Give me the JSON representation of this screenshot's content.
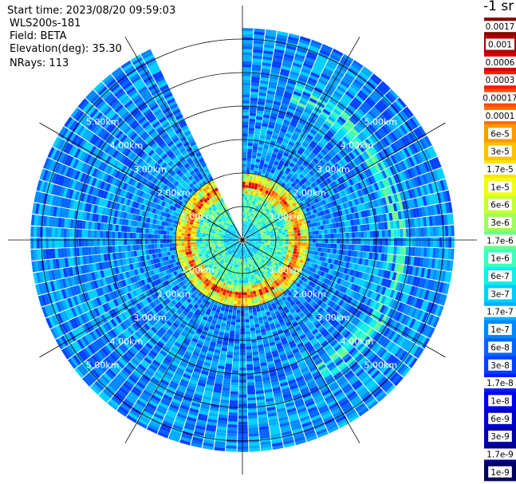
{
  "header": {
    "start_time": "Start time: 2023/08/20 09:59:03",
    "instrument": "WLS200s-181",
    "field": "Field: BETA",
    "elevation": "Elevation(deg): 35.30",
    "nrays": "NRays: 113"
  },
  "colorbar": {
    "unit_label": "-1 sr",
    "entries": [
      {
        "label": "0.0017",
        "color": "#8b0000"
      },
      {
        "label": "0.001",
        "color": "#b00000"
      },
      {
        "label": "0.0006",
        "color": "#d80000"
      },
      {
        "label": "0.0003",
        "color": "#ff1a00"
      },
      {
        "label": "0.00017",
        "color": "#ff4a00"
      },
      {
        "label": "0.0001",
        "color": "#ff7000"
      },
      {
        "label": "6e-5",
        "color": "#ff9a00"
      },
      {
        "label": "3e-5",
        "color": "#ffc000"
      },
      {
        "label": "1.7e-5",
        "color": "#ffe400"
      },
      {
        "label": "1e-5",
        "color": "#f0ff10"
      },
      {
        "label": "6e-6",
        "color": "#c8ff30"
      },
      {
        "label": "3e-6",
        "color": "#9cff5c"
      },
      {
        "label": "1.7e-6",
        "color": "#6cff8c"
      },
      {
        "label": "1e-6",
        "color": "#3cffbc"
      },
      {
        "label": "6e-7",
        "color": "#10f0e8"
      },
      {
        "label": "3e-7",
        "color": "#00cfff"
      },
      {
        "label": "1.7e-7",
        "color": "#00acff"
      },
      {
        "label": "1e-7",
        "color": "#0088ff"
      },
      {
        "label": "6e-8",
        "color": "#0064ff"
      },
      {
        "label": "3e-8",
        "color": "#0040ff"
      },
      {
        "label": "1.7e-8",
        "color": "#001cff"
      },
      {
        "label": "1e-8",
        "color": "#0000f0"
      },
      {
        "label": "6e-9",
        "color": "#0000cc"
      },
      {
        "label": "3e-9",
        "color": "#0000a8"
      },
      {
        "label": "1.7e-9",
        "color": "#000084"
      },
      {
        "label": "1e-9",
        "color": "#000060"
      }
    ]
  },
  "chart_data": {
    "type": "heatmap",
    "projection": "polar PPI scan",
    "field": "BETA",
    "elevation_deg": 35.3,
    "n_rays": 113,
    "max_range_km": 6.0,
    "range_rings_km": [
      1,
      2,
      3,
      4,
      5,
      6
    ],
    "ring_labels": [
      "1.00km",
      "2.00km",
      "3.00km",
      "4.00km",
      "5.00km"
    ],
    "radial_lines_deg": [
      0,
      30,
      60,
      90,
      120,
      150,
      180,
      210,
      240,
      270,
      300,
      330
    ],
    "gap_sectors_deg": [
      [
        -27,
        -1
      ]
    ],
    "features": [
      {
        "description": "strong backscatter ring",
        "range_km": [
          1.35,
          1.9
        ],
        "level": "1e-5 to 3e-4"
      },
      {
        "description": "moderate inner region",
        "range_km": [
          0.6,
          1.4
        ],
        "level": "1e-6 to 6e-6"
      },
      {
        "description": "faint outer arc",
        "azimuth_deg": [
          20,
          150
        ],
        "range_km": [
          4.3,
          4.8
        ],
        "level": "6e-7 to 1.7e-6"
      },
      {
        "description": "background",
        "range_km": [
          1.9,
          6.0
        ],
        "level": "1e-8 to 3e-7"
      }
    ]
  }
}
